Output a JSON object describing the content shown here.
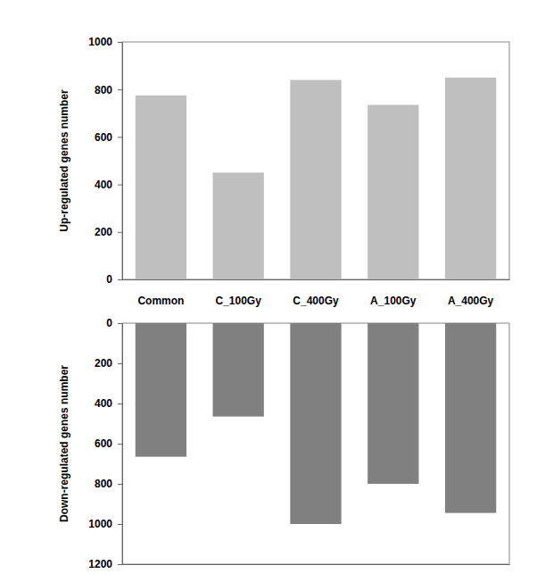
{
  "chart_data": [
    {
      "type": "bar",
      "y_label": "Up-regulated genes number",
      "categories": [
        "Common",
        "C_100Gy",
        "C_400Gy",
        "A_100Gy",
        "A_400Gy"
      ],
      "values": [
        775,
        450,
        840,
        735,
        850
      ],
      "color": "#bfbfbf",
      "ylim": [
        0,
        1000
      ],
      "yticks": [
        0,
        200,
        400,
        600,
        800,
        1000
      ]
    },
    {
      "type": "bar",
      "y_label": "Down-regulated genes number",
      "categories": [
        "Common",
        "C_100Gy",
        "C_400Gy",
        "A_100Gy",
        "A_400Gy"
      ],
      "values": [
        665,
        465,
        1000,
        800,
        945
      ],
      "color": "#808080",
      "ylim": [
        1200,
        0
      ],
      "yticks": [
        0,
        200,
        400,
        600,
        800,
        1000,
        1200
      ],
      "tick_labels": "y"
    }
  ]
}
